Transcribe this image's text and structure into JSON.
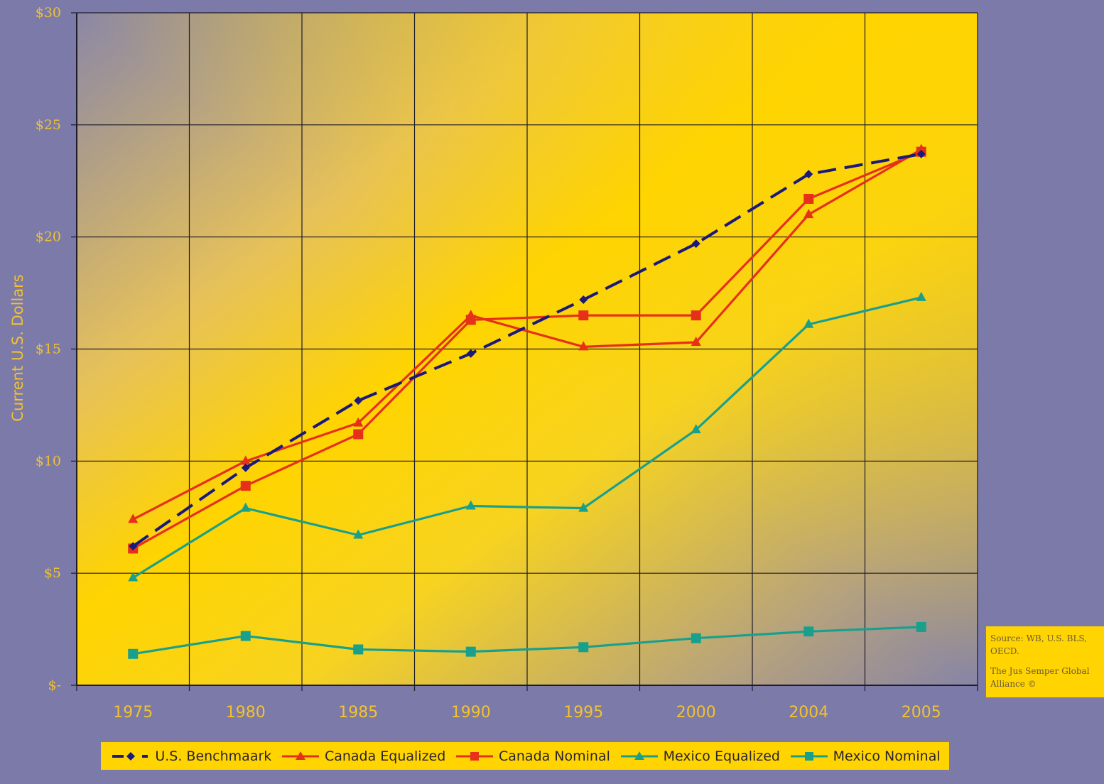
{
  "chart_data": {
    "type": "line",
    "title": "",
    "xlabel": "",
    "ylabel": "Current U.S. Dollars",
    "categories": [
      "1975",
      "1980",
      "1985",
      "1990",
      "1995",
      "2000",
      "2004",
      "2005"
    ],
    "ylim": [
      0,
      30
    ],
    "y_ticks": [
      0,
      5,
      10,
      15,
      20,
      25,
      30
    ],
    "y_tick_labels": [
      "$-",
      "$5",
      "$10",
      "$15",
      "$20",
      "$25",
      "$30"
    ],
    "grid": true,
    "legend_position": "bottom",
    "series": [
      {
        "name": "U.S. Benchmaark",
        "color": "#1a1a7a",
        "dash": true,
        "marker": "diamond",
        "values": [
          6.2,
          9.7,
          12.7,
          14.8,
          17.2,
          19.7,
          22.8,
          23.7
        ]
      },
      {
        "name": "Canada Equalized",
        "color": "#e63019",
        "dash": false,
        "marker": "triangle",
        "values": [
          7.4,
          10.0,
          11.7,
          16.5,
          15.1,
          15.3,
          21.0,
          23.9
        ]
      },
      {
        "name": "Canada Nominal",
        "color": "#e63019",
        "dash": false,
        "marker": "square",
        "values": [
          6.1,
          8.9,
          11.2,
          16.3,
          16.5,
          16.5,
          21.7,
          23.8
        ]
      },
      {
        "name": "Mexico Equalized",
        "color": "#19a08c",
        "dash": false,
        "marker": "triangle",
        "values": [
          4.8,
          7.9,
          6.7,
          8.0,
          7.9,
          11.4,
          16.1,
          17.3
        ]
      },
      {
        "name": "Mexico Nominal",
        "color": "#19a08c",
        "dash": false,
        "marker": "square",
        "values": [
          1.4,
          2.2,
          1.6,
          1.5,
          1.7,
          2.1,
          2.4,
          2.6
        ]
      }
    ]
  },
  "source": {
    "line1": "Source: WB, U.S. BLS,",
    "line2": "OECD.",
    "line3": "The Jus Semper Global",
    "line4": "Alliance ©"
  }
}
